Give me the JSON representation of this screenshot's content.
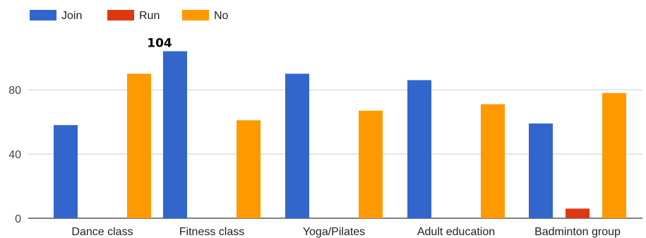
{
  "chart_data": {
    "type": "bar",
    "categories": [
      "Dance class",
      "Fitness class",
      "Yoga/Pilates",
      "Adult education",
      "Badminton group"
    ],
    "series": [
      {
        "name": "Join",
        "color": "#3366cc",
        "values": [
          58,
          104,
          90,
          86,
          59
        ]
      },
      {
        "name": "Run",
        "color": "#dc3912",
        "values": [
          0,
          0,
          0,
          0,
          6
        ]
      },
      {
        "name": "No",
        "color": "#ff9900",
        "values": [
          90,
          61,
          67,
          71,
          78
        ]
      }
    ],
    "yticks": [
      "0",
      "40",
      "80"
    ],
    "ylim": [
      0,
      128
    ],
    "legend_position": "top-left",
    "grid": true,
    "data_labels": [
      {
        "series": 0,
        "category": 1,
        "text": "104"
      }
    ]
  }
}
